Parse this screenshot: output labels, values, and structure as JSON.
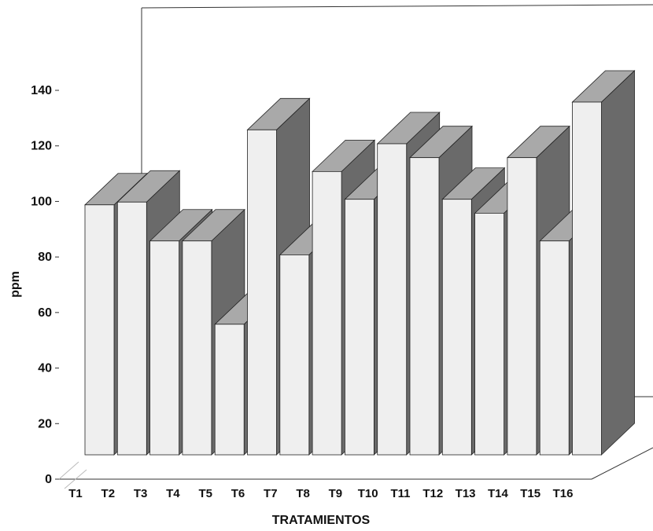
{
  "chart_data": {
    "type": "bar",
    "title": "",
    "xlabel": "TRATAMIENTOS",
    "ylabel": "ppm",
    "categories": [
      "T1",
      "T2",
      "T3",
      "T4",
      "T5",
      "T6",
      "T7",
      "T8",
      "T9",
      "T10",
      "T11",
      "T12",
      "T13",
      "T14",
      "T15",
      "T16"
    ],
    "values": [
      90,
      91,
      77,
      77,
      47,
      117,
      72,
      102,
      92,
      112,
      107,
      92,
      87,
      107,
      77,
      127
    ],
    "ylim": [
      0,
      140
    ],
    "yticks": [
      0,
      20,
      40,
      60,
      80,
      100,
      120,
      140
    ],
    "grid": false,
    "legend": "none",
    "style": "3d",
    "colors": {
      "bar_front": "#efefef",
      "bar_top": "#a9a9a9",
      "bar_side": "#6a6a6a",
      "outline": "#222222",
      "axis": "#333333"
    }
  }
}
